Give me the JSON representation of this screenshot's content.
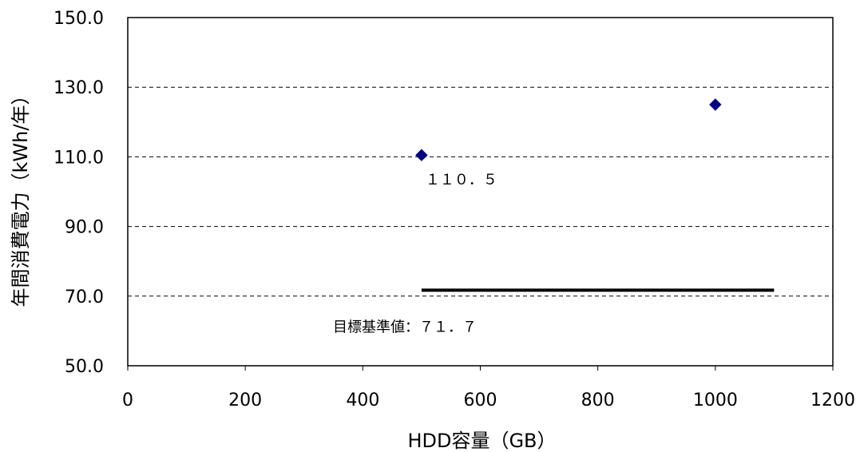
{
  "chart_data": {
    "type": "scatter",
    "title": "",
    "xlabel": "HDD容量（GB）",
    "ylabel": "年間消費電力（kWh/年）",
    "xlim": [
      0,
      1200
    ],
    "ylim": [
      50,
      150
    ],
    "x_ticks": [
      "0",
      "200",
      "400",
      "600",
      "800",
      "1000",
      "1200"
    ],
    "y_ticks": [
      "50.0",
      "70.0",
      "90.0",
      "110.0",
      "130.0",
      "150.0"
    ],
    "grid": "horizontal-dashed",
    "series": [
      {
        "color": "#000080",
        "marker": "diamond",
        "points": [
          {
            "x": 500,
            "y": 110.5
          },
          {
            "x": 1000,
            "y": 125.0
          }
        ]
      }
    ],
    "reference_line": {
      "x_start": 500,
      "x_end": 1100,
      "y": 71.7,
      "color": "#000000"
    },
    "annotations": {
      "point_label": "１１０．５",
      "reference_label": "目標基準値：７１．７"
    }
  }
}
